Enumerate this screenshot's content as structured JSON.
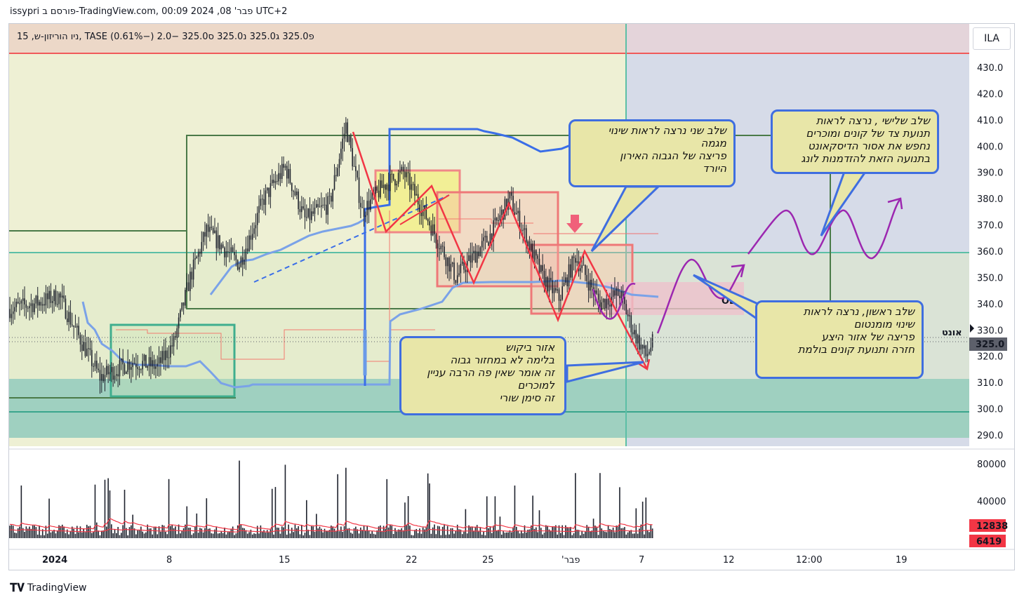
{
  "header": "issypri פורסם ב-TradingView.com, פבר' 08, 2024 00:09 UTC+2",
  "legend": "ניו הוריזון-ש, 15, TASE  פ325.0  ג325.0  נ325.0  ס325.0  −2.0 (−0.61%)",
  "symbol_button": "ILA",
  "partial_label": "אונט",
  "logo_text": "TradingView",
  "colors": {
    "up": "#26a69a",
    "down": "#ef5350",
    "candle": "#1e222d",
    "vwap_blue": "#3a6ee8",
    "red_lines": "#f23645",
    "purple": "#9c27b0"
  },
  "callouts": {
    "first": [
      "שלב ראשון, נרצה לראות",
      "שינוי מומנטום",
      "פריצה של אזור היצע",
      "חזרה ותנועת קונים בולמת"
    ],
    "second": [
      "שלב שני נרצה לראות שינוי",
      "מגמה",
      "פריצה של הגבוה האירון",
      "היורד"
    ],
    "third": [
      "שלב שלישי , נרצה לראות",
      "תנועת צד של קונים ומוכרים",
      "נחפש את אסור הדיסקאונט",
      "בתנועה הזאת להזדמנות לונג"
    ],
    "demand": [
      "אזור ביקוש",
      "בלימה לא במחזור גבוה",
      "זה אומר שאין פה הרבה עניין",
      "למוכרים",
      "זה סימן שורי"
    ]
  },
  "ob_label": "OB",
  "chart_data": [
    {
      "type": "candlestick",
      "price_axis_ticks": [
        "430.0",
        "420.0",
        "410.0",
        "400.0",
        "390.0",
        "380.0",
        "370.0",
        "360.0",
        "350.0",
        "340.0",
        "330.0",
        "320.0",
        "310.0",
        "300.0",
        "290.0"
      ],
      "ylim": [
        287,
        442
      ],
      "time_axis_ticks": [
        "2024",
        "8",
        "15",
        "22",
        "25",
        "'פבר",
        "7",
        "12",
        "12:00",
        "19"
      ],
      "last_price": "325.0",
      "horizontal_levels": [
        436,
        367,
        360,
        300
      ],
      "path_approx": [
        {
          "i": 0,
          "price": 338
        },
        {
          "i": 15,
          "price": 340
        },
        {
          "i": 30,
          "price": 343
        },
        {
          "i": 40,
          "price": 330
        },
        {
          "i": 55,
          "price": 312
        },
        {
          "i": 75,
          "price": 318
        },
        {
          "i": 90,
          "price": 316
        },
        {
          "i": 100,
          "price": 325
        },
        {
          "i": 110,
          "price": 350
        },
        {
          "i": 120,
          "price": 368
        },
        {
          "i": 140,
          "price": 355
        },
        {
          "i": 155,
          "price": 380
        },
        {
          "i": 168,
          "price": 392
        },
        {
          "i": 180,
          "price": 372
        },
        {
          "i": 195,
          "price": 378
        },
        {
          "i": 205,
          "price": 408
        },
        {
          "i": 215,
          "price": 375
        },
        {
          "i": 228,
          "price": 385
        },
        {
          "i": 240,
          "price": 390
        },
        {
          "i": 255,
          "price": 372
        },
        {
          "i": 272,
          "price": 350
        },
        {
          "i": 292,
          "price": 365
        },
        {
          "i": 305,
          "price": 380
        },
        {
          "i": 315,
          "price": 365
        },
        {
          "i": 325,
          "price": 350
        },
        {
          "i": 335,
          "price": 342
        },
        {
          "i": 345,
          "price": 358
        },
        {
          "i": 360,
          "price": 340
        },
        {
          "i": 372,
          "price": 344
        },
        {
          "i": 380,
          "price": 330
        },
        {
          "i": 388,
          "price": 320
        },
        {
          "i": 392,
          "price": 325
        }
      ]
    },
    {
      "type": "bar",
      "title": "volume",
      "volume_axis_ticks": [
        "80000",
        "40000"
      ],
      "ylim": [
        0,
        92000
      ],
      "value_badges": [
        "12838",
        "6419"
      ]
    }
  ]
}
